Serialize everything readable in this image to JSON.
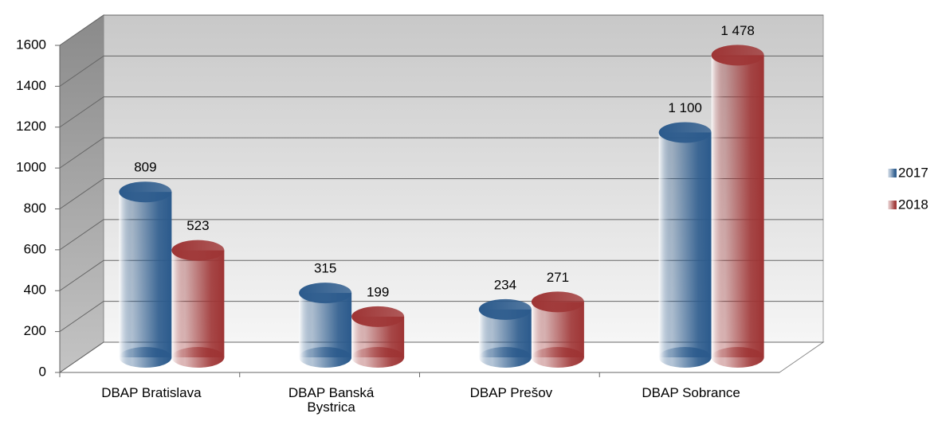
{
  "chart_data": {
    "type": "bar3d",
    "categories": [
      "DBAP Bratislava",
      "DBAP Banská Bystrica",
      "DBAP Prešov",
      "DBAP Sobrance"
    ],
    "series": [
      {
        "name": "2017",
        "color": "#2b5a8c",
        "values": [
          809,
          315,
          234,
          1100
        ],
        "value_labels": [
          "809",
          "315",
          "234",
          "1 100"
        ]
      },
      {
        "name": "2018",
        "color": "#9e3434",
        "values": [
          523,
          199,
          271,
          1478
        ],
        "value_labels": [
          "523",
          "199",
          "271",
          "1 478"
        ]
      }
    ],
    "ylim": [
      0,
      1600
    ],
    "yticks": [
      0,
      200,
      400,
      600,
      800,
      1000,
      1200,
      1400,
      1600
    ],
    "grid": true,
    "legend": "right"
  }
}
